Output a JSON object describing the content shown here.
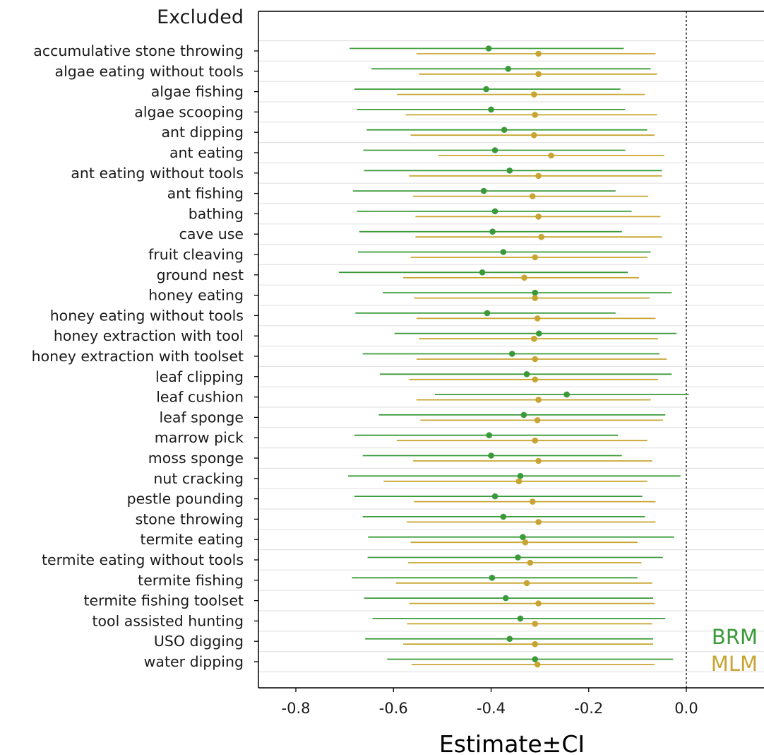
{
  "chart_data": {
    "type": "forest",
    "title": "Excluded",
    "xlabel": "Estimate±CI",
    "ylabel": "",
    "xlim": [
      -0.875,
      0.15
    ],
    "x_ticks": [
      -0.8,
      -0.6,
      -0.4,
      -0.2,
      0.0
    ],
    "x_tick_labels": [
      "-0.8",
      "-0.6",
      "-0.4",
      "-0.2",
      "0.0"
    ],
    "reference_line": 0.0,
    "legend_position": "bottom-right",
    "grid": "horizontal",
    "categories": [
      "accumulative stone throwing",
      "algae eating without tools",
      "algae fishing",
      "algae scooping",
      "ant dipping",
      "ant eating",
      "ant eating without tools",
      "ant fishing",
      "bathing",
      "cave use",
      "fruit cleaving",
      "ground nest",
      "honey eating",
      "honey eating without tools",
      "honey extraction with tool",
      "honey extraction with toolset",
      "leaf clipping",
      "leaf cushion",
      "leaf sponge",
      "marrow pick",
      "moss sponge",
      "nut cracking",
      "pestle pounding",
      "stone throwing",
      "termite eating",
      "termite eating without tools",
      "termite fishing",
      "termite fishing toolset",
      "tool assisted hunting",
      "USO digging",
      "water dipping"
    ],
    "series": [
      {
        "name": "BRM",
        "color": "#3a9a3a",
        "estimate": [
          -0.405,
          -0.365,
          -0.41,
          -0.4,
          -0.373,
          -0.392,
          -0.362,
          -0.415,
          -0.392,
          -0.397,
          -0.375,
          -0.418,
          -0.31,
          -0.408,
          -0.302,
          -0.357,
          -0.327,
          -0.245,
          -0.333,
          -0.404,
          -0.4,
          -0.34,
          -0.392,
          -0.375,
          -0.335,
          -0.345,
          -0.398,
          -0.37,
          -0.34,
          -0.362,
          -0.31
        ],
        "lower": [
          -0.69,
          -0.645,
          -0.68,
          -0.675,
          -0.655,
          -0.662,
          -0.66,
          -0.683,
          -0.675,
          -0.67,
          -0.673,
          -0.712,
          -0.622,
          -0.678,
          -0.598,
          -0.663,
          -0.628,
          -0.515,
          -0.63,
          -0.68,
          -0.663,
          -0.693,
          -0.68,
          -0.663,
          -0.652,
          -0.653,
          -0.685,
          -0.66,
          -0.643,
          -0.658,
          -0.613
        ],
        "upper": [
          -0.128,
          -0.073,
          -0.135,
          -0.125,
          -0.08,
          -0.125,
          -0.05,
          -0.145,
          -0.112,
          -0.132,
          -0.073,
          -0.12,
          -0.03,
          -0.145,
          -0.02,
          -0.055,
          -0.03,
          0.005,
          -0.043,
          -0.14,
          -0.132,
          -0.012,
          -0.09,
          -0.085,
          -0.025,
          -0.048,
          -0.1,
          -0.068,
          -0.043,
          -0.068,
          -0.027
        ]
      },
      {
        "name": "MLM",
        "color": "#c8a532",
        "estimate": [
          -0.303,
          -0.303,
          -0.312,
          -0.31,
          -0.312,
          -0.277,
          -0.303,
          -0.315,
          -0.303,
          -0.297,
          -0.31,
          -0.332,
          -0.31,
          -0.305,
          -0.312,
          -0.31,
          -0.31,
          -0.303,
          -0.305,
          -0.31,
          -0.303,
          -0.343,
          -0.315,
          -0.303,
          -0.33,
          -0.32,
          -0.327,
          -0.303,
          -0.31,
          -0.31,
          -0.305
        ],
        "lower": [
          -0.553,
          -0.548,
          -0.593,
          -0.575,
          -0.565,
          -0.508,
          -0.568,
          -0.56,
          -0.555,
          -0.555,
          -0.565,
          -0.58,
          -0.558,
          -0.553,
          -0.548,
          -0.553,
          -0.568,
          -0.553,
          -0.545,
          -0.593,
          -0.56,
          -0.62,
          -0.558,
          -0.573,
          -0.565,
          -0.57,
          -0.595,
          -0.568,
          -0.572,
          -0.58,
          -0.563
        ],
        "upper": [
          -0.063,
          -0.06,
          -0.085,
          -0.06,
          -0.065,
          -0.045,
          -0.05,
          -0.078,
          -0.053,
          -0.05,
          -0.08,
          -0.097,
          -0.075,
          -0.063,
          -0.058,
          -0.04,
          -0.058,
          -0.073,
          -0.048,
          -0.08,
          -0.07,
          -0.08,
          -0.063,
          -0.063,
          -0.1,
          -0.092,
          -0.07,
          -0.065,
          -0.07,
          -0.068,
          -0.065
        ]
      }
    ]
  }
}
